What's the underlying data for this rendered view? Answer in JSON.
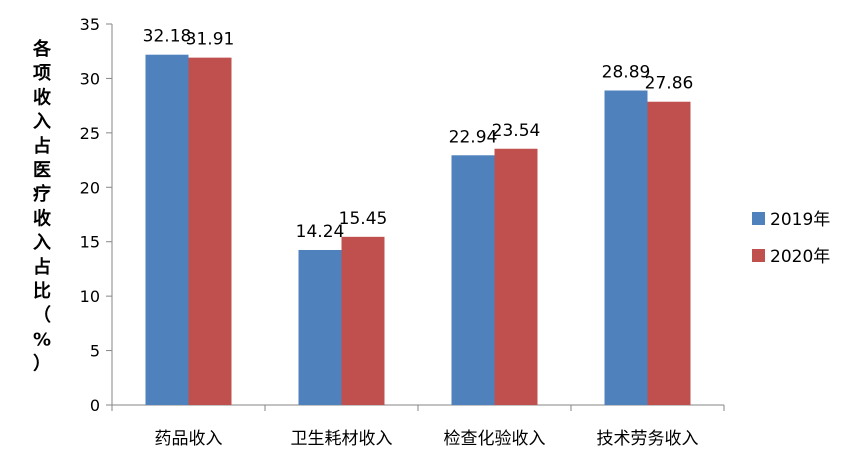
{
  "chart_data": {
    "type": "bar",
    "title": "",
    "xlabel": "",
    "ylabel": "各项收入占医疗收入占比（%）",
    "categories": [
      "药品收入",
      "卫生耗材收入",
      "检查化验收入",
      "技术劳务收入"
    ],
    "series": [
      {
        "name": "2019年",
        "values": [
          32.18,
          14.24,
          22.94,
          28.89
        ],
        "color": "#4f81bd"
      },
      {
        "name": "2020年",
        "values": [
          31.91,
          15.45,
          23.54,
          27.86
        ],
        "color": "#c0504d"
      }
    ],
    "ylim": [
      0,
      35
    ],
    "yticks": [
      0,
      5,
      10,
      15,
      20,
      25,
      30,
      35
    ],
    "grid": false,
    "legend_position": "right",
    "data_labels": true
  }
}
